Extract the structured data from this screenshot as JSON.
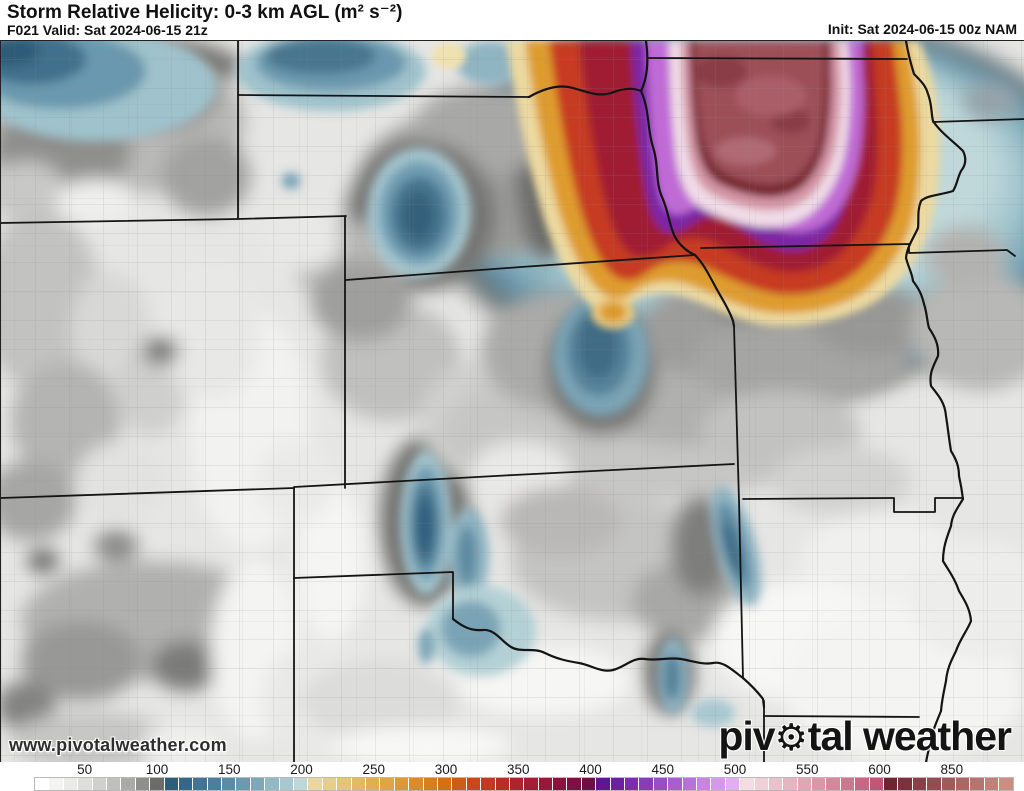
{
  "header": {
    "title": "Storm Relative Helicity: 0-3 km AGL (m² s⁻²)",
    "subtitle": "F021 Valid: Sat 2024-06-15 21z",
    "init": "Init: Sat 2024-06-15 00z NAM"
  },
  "branding": {
    "watermark": "www.pivotalweather.com",
    "logo_prefix": "piv",
    "logo_gear": "⚙",
    "logo_suffix": "tal weather"
  },
  "colorbar": {
    "ticks": [
      "50",
      "100",
      "150",
      "200",
      "250",
      "300",
      "350",
      "400",
      "450",
      "500",
      "550",
      "600",
      "850"
    ],
    "cells": [
      "#ffffff",
      "#f4f4f2",
      "#eaeae8",
      "#dededc",
      "#d0d0ce",
      "#bfbfbd",
      "#aaaaa8",
      "#8f8f8d",
      "#6b6b69",
      "#2d5d7b",
      "#35678a",
      "#407394",
      "#4c7f9d",
      "#5a8ca6",
      "#6a99b0",
      "#7da8ba",
      "#92b8c5",
      "#a8c8cf",
      "#bed7d9",
      "#e9d79f",
      "#e7cd8b",
      "#e5c378",
      "#e3b965",
      "#e1ae53",
      "#dfa444",
      "#dc9836",
      "#d98c29",
      "#d67f1d",
      "#d27013",
      "#cb5c17",
      "#c7481d",
      "#c23822",
      "#b92d27",
      "#ae242d",
      "#a31d33",
      "#971838",
      "#8a133d",
      "#7d0f42",
      "#700c46",
      "#5f1693",
      "#6d219f",
      "#7b2eab",
      "#8a3cb7",
      "#9a4cc3",
      "#a95ece",
      "#b970d8",
      "#c884e2",
      "#d698ea",
      "#e3adf2",
      "#f3dde2",
      "#efd0d7",
      "#eac2cb",
      "#e5b4c0",
      "#e0a6b4",
      "#da97a8",
      "#d4889c",
      "#ce7890",
      "#c76783",
      "#c05676",
      "#6e2531",
      "#7b323c",
      "#883f46",
      "#944c50",
      "#a05a5a",
      "#ac6763",
      "#b7746d",
      "#c28177",
      "#cc8e81"
    ]
  },
  "map": {
    "state_line_color": "#141414",
    "county_line_color": "#8a8a88",
    "background_color": "#e6e6e4"
  }
}
